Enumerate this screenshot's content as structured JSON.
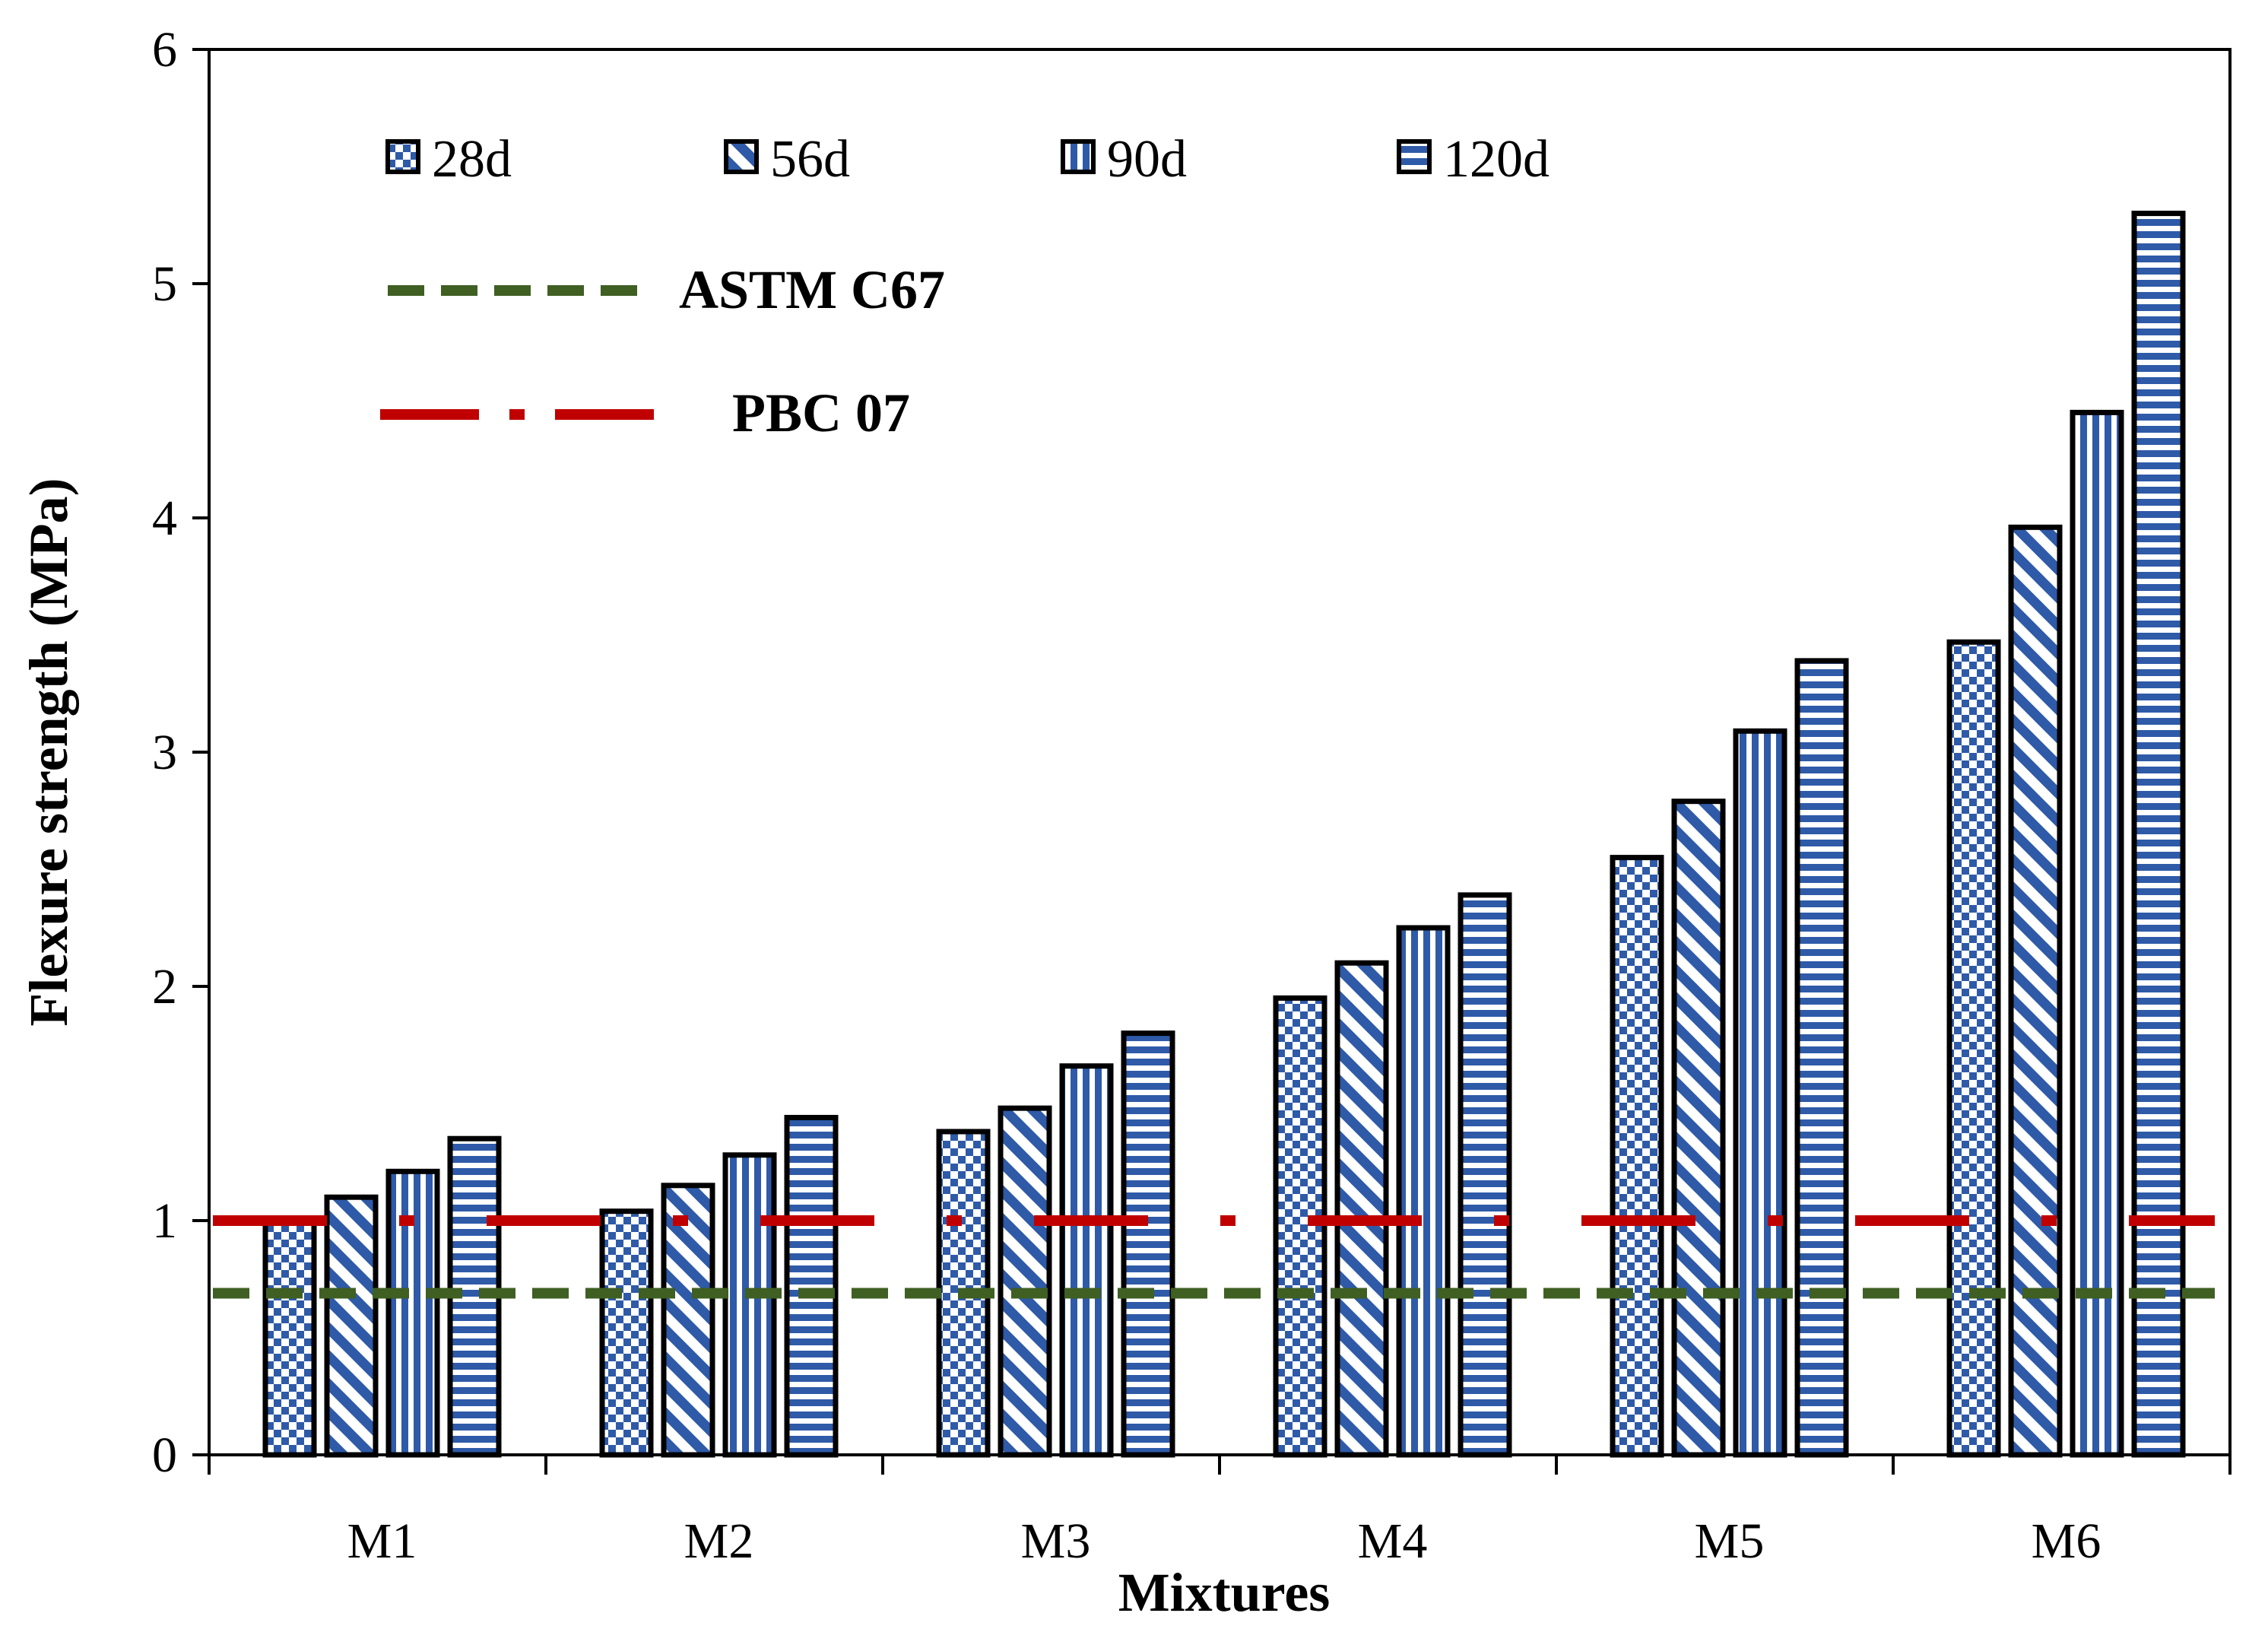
{
  "chart_data": {
    "type": "bar",
    "title": "",
    "xlabel": "Mixtures",
    "ylabel": "Flexure strength (MPa)",
    "ylim": [
      0,
      6
    ],
    "yticks": [
      "0",
      "1",
      "2",
      "3",
      "4",
      "5",
      "6"
    ],
    "categories": [
      "M1",
      "M2",
      "M3",
      "M4",
      "M5",
      "M6"
    ],
    "series": [
      {
        "name": "28d",
        "pattern": "checker",
        "values": [
          1.0,
          1.04,
          1.38,
          1.95,
          2.55,
          3.47
        ]
      },
      {
        "name": "56d",
        "pattern": "diagonal",
        "values": [
          1.1,
          1.15,
          1.48,
          2.1,
          2.79,
          3.96
        ]
      },
      {
        "name": "90d",
        "pattern": "vertical",
        "values": [
          1.21,
          1.28,
          1.66,
          2.25,
          3.09,
          4.45
        ]
      },
      {
        "name": "120d",
        "pattern": "horizontal",
        "values": [
          1.35,
          1.44,
          1.8,
          2.39,
          3.39,
          5.3
        ]
      }
    ],
    "reference_lines": [
      {
        "name": "ASTM C67",
        "value": 0.69,
        "style": "dashed",
        "color": "#3f5f23"
      },
      {
        "name": "PBC 07",
        "value": 1.0,
        "style": "dash-dot",
        "color": "#c00000"
      }
    ],
    "legend_position": "top-left",
    "bar_fill_color": "#2e5aa8",
    "grid": false
  }
}
